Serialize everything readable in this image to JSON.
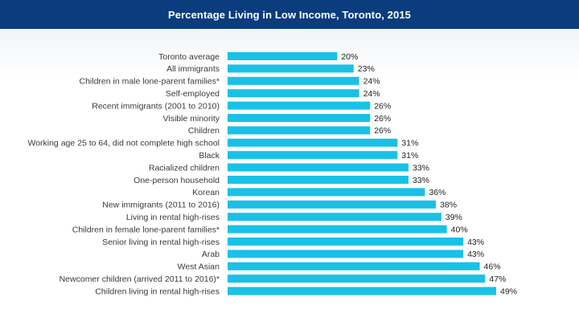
{
  "chart_data": {
    "type": "bar",
    "orientation": "horizontal",
    "title": "Percentage Living in Low Income, Toronto, 2015",
    "categories": [
      "Toronto average",
      "All immigrants",
      "Children in male lone-parent families*",
      "Self-employed",
      "Recent immigrants (2001 to 2010)",
      "Visible minority",
      "Children",
      "Working age 25 to 64, did not complete high school",
      "Black",
      "Racialized children",
      "One-person household",
      "Korean",
      "New immigrants (2011 to 2016)",
      "Living in rental high-rises",
      "Children in female lone-parent families*",
      "Senior living in rental high-rises",
      "Arab",
      "West Asian",
      "Newcomer children (arrived 2011 to 2016)*",
      "Children living in rental high-rises"
    ],
    "values": [
      20,
      23,
      24,
      24,
      26,
      26,
      26,
      31,
      31,
      33,
      33,
      36,
      38,
      39,
      40,
      43,
      43,
      46,
      47,
      49
    ],
    "value_labels": [
      "20%",
      "23%",
      "24%",
      "24%",
      "26%",
      "26%",
      "26%",
      "31%",
      "31%",
      "33%",
      "33%",
      "36%",
      "38%",
      "39%",
      "40%",
      "43%",
      "43%",
      "46%",
      "47%",
      "49%"
    ],
    "xlim": [
      0,
      49
    ],
    "grid": false,
    "colors": {
      "bar": "#19c1e6",
      "header": "#0b3c7d"
    }
  }
}
